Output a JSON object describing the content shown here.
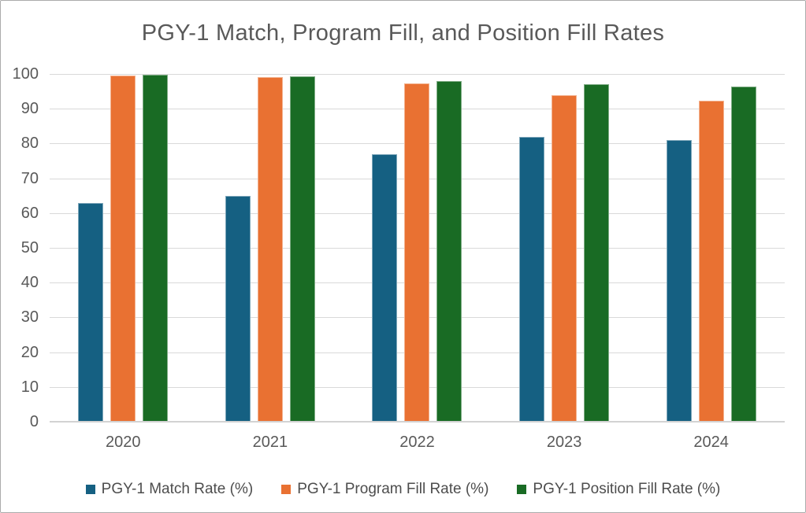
{
  "chart_data": {
    "type": "bar",
    "title": "PGY-1 Match, Program Fill, and Position Fill Rates",
    "categories": [
      "2020",
      "2021",
      "2022",
      "2023",
      "2024"
    ],
    "series": [
      {
        "name": "PGY-1 Match Rate (%)",
        "color": "#156082",
        "values": [
          63,
          65,
          77,
          82,
          81
        ]
      },
      {
        "name": "PGY-1 Program Fill Rate (%)",
        "color": "#E97132",
        "values": [
          99.5,
          99,
          97.3,
          94,
          92.3
        ]
      },
      {
        "name": "PGY-1 Position Fill Rate (%)",
        "color": "#196B24",
        "values": [
          99.8,
          99.3,
          98,
          97.1,
          96.4
        ]
      }
    ],
    "xlabel": "",
    "ylabel": "",
    "ylim": [
      0,
      100
    ],
    "yticks": [
      0,
      10,
      20,
      30,
      40,
      50,
      60,
      70,
      80,
      90,
      100
    ],
    "grid": true,
    "legend_position": "bottom"
  },
  "colors": {
    "background": "#FFFFFF",
    "frame_border": "#ABABAB",
    "title": "#595959",
    "axis_text": "#595959",
    "legend_text": "#4D4D4D",
    "gridline": "#D9D9D9",
    "baseline": "#D2D2D2",
    "series_blue": "#156082",
    "series_orange": "#E97132",
    "series_green": "#196B24"
  }
}
